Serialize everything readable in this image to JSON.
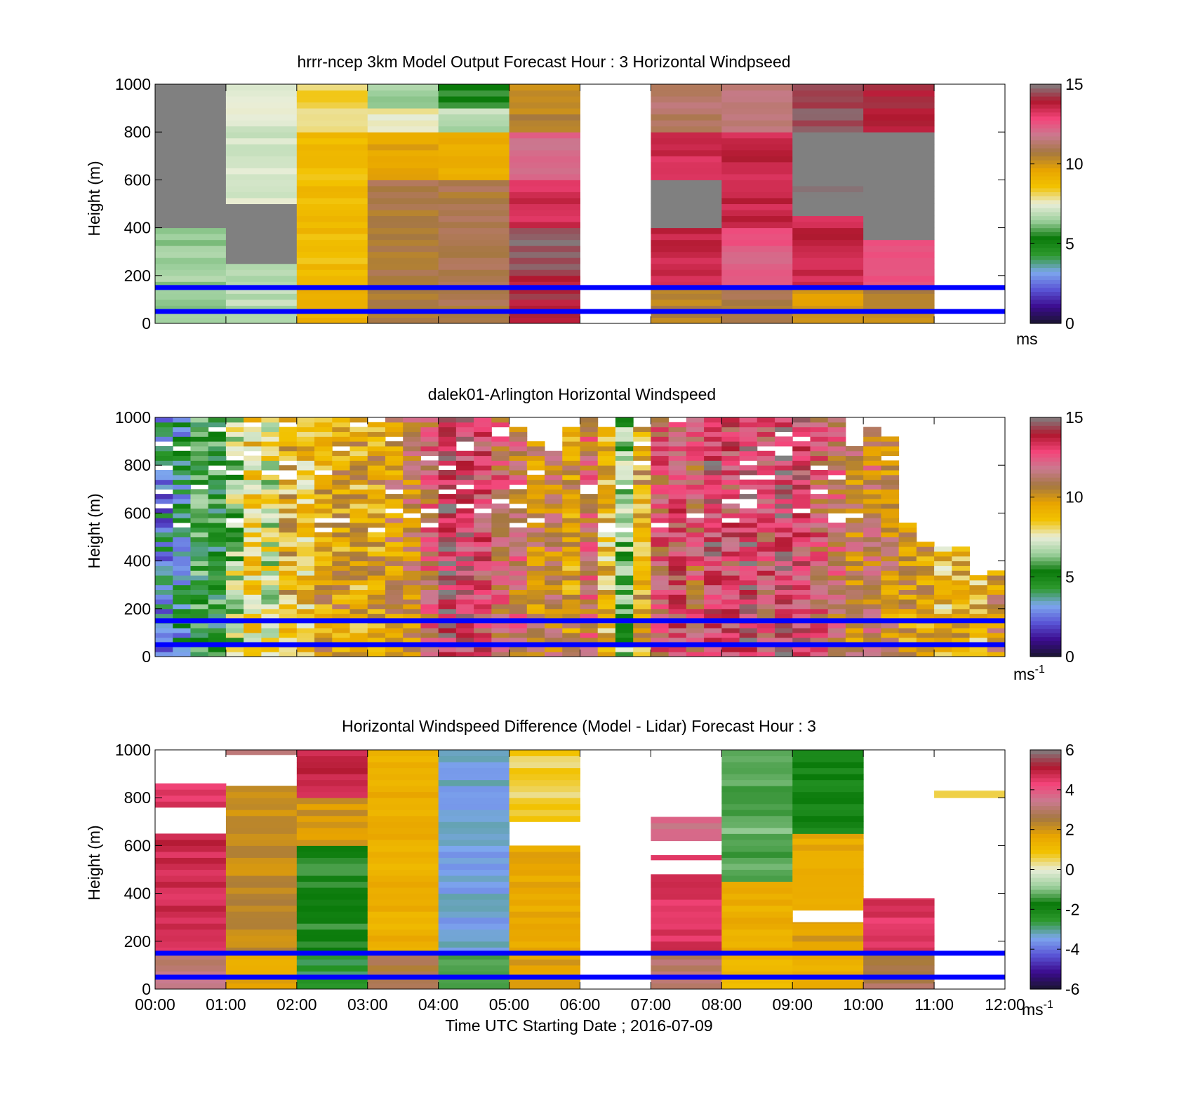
{
  "colors": {
    "speed_scale": [
      "#1a1530",
      "#3b0b8e",
      "#5a55d6",
      "#7da7ee",
      "#2e9a2e",
      "#0a7a0a",
      "#9ccf9c",
      "#e9eed9",
      "#f2c200",
      "#e8a400",
      "#a57840",
      "#c97a90",
      "#f4457a",
      "#b0182f",
      "#808080"
    ],
    "overlay_line": "#0000ff"
  },
  "chart_data": [
    {
      "type": "heatmap",
      "title": "hrrr-ncep 3km Model Output   Forecast Hour : 3 Horizontal Windpseed",
      "xlabel": "",
      "ylabel": "Height (m)",
      "ylim": [
        0,
        1000
      ],
      "xlim": [
        0,
        12
      ],
      "y_ticks": [
        "0",
        "200",
        "400",
        "600",
        "800",
        "1000"
      ],
      "colorbar": {
        "ticks": [
          "0",
          "5",
          "10",
          "15"
        ],
        "range": [
          0,
          15
        ],
        "label": "ms"
      },
      "overlay_lines": [
        150,
        50
      ],
      "columns": [
        {
          "t": 0,
          "cells": [
            [
              0,
              400,
              6.5
            ],
            [
              400,
              1000,
              16
            ]
          ]
        },
        {
          "t": 1,
          "cells": [
            [
              0,
              250,
              6.8
            ],
            [
              250,
              500,
              16
            ],
            [
              500,
              1000,
              7.2
            ]
          ]
        },
        {
          "t": 2,
          "cells": [
            [
              0,
              150,
              9.4
            ],
            [
              150,
              800,
              8.8
            ],
            [
              800,
              1000,
              8.2
            ]
          ]
        },
        {
          "t": 3,
          "cells": [
            [
              0,
              600,
              10.8
            ],
            [
              600,
              800,
              9.6
            ],
            [
              800,
              900,
              7.8
            ],
            [
              900,
              1000,
              6.4
            ]
          ]
        },
        {
          "t": 4,
          "cells": [
            [
              0,
              600,
              10.8
            ],
            [
              600,
              800,
              9.2
            ],
            [
              800,
              900,
              6.8
            ],
            [
              900,
              1000,
              5.6
            ]
          ]
        },
        {
          "t": 5,
          "cells": [
            [
              0,
              200,
              14.0
            ],
            [
              200,
              400,
              14.6
            ],
            [
              400,
              600,
              13.4
            ],
            [
              600,
              800,
              12.2
            ],
            [
              800,
              1000,
              10.4
            ]
          ]
        },
        {
          "t": 7,
          "cells": [
            [
              0,
              150,
              10.5
            ],
            [
              150,
              400,
              13.5
            ],
            [
              400,
              600,
              16
            ],
            [
              600,
              800,
              13.4
            ],
            [
              800,
              1000,
              11.2
            ]
          ]
        },
        {
          "t": 8,
          "cells": [
            [
              0,
              150,
              10.8
            ],
            [
              150,
              400,
              12.4
            ],
            [
              400,
              800,
              13.6
            ],
            [
              800,
              1000,
              11.6
            ]
          ]
        },
        {
          "t": 9,
          "cells": [
            [
              0,
              150,
              10.0
            ],
            [
              150,
              450,
              13.6
            ],
            [
              450,
              600,
              14.8
            ],
            [
              600,
              800,
              16
            ],
            [
              800,
              1000,
              14.6
            ]
          ]
        },
        {
          "t": 10,
          "cells": [
            [
              0,
              150,
              10.4
            ],
            [
              150,
              350,
              12.8
            ],
            [
              350,
              800,
              16
            ],
            [
              800,
              1000,
              14.0
            ]
          ]
        }
      ]
    },
    {
      "type": "heatmap",
      "title": "dalek01-Arlington  Horizontal Windspeed",
      "xlabel": "",
      "ylabel": "Height (m)",
      "ylim": [
        0,
        1000
      ],
      "xlim": [
        0,
        12
      ],
      "y_ticks": [
        "0",
        "200",
        "400",
        "600",
        "800",
        "1000"
      ],
      "colorbar": {
        "ticks": [
          "0",
          "5",
          "10",
          "15"
        ],
        "range": [
          0,
          15
        ],
        "label": "ms",
        "label_sup": "-1"
      },
      "overlay_lines": [
        150,
        50
      ],
      "profiles": [
        {
          "t": 0.0,
          "top": 1000,
          "v": 3.2
        },
        {
          "t": 0.25,
          "top": 1000,
          "v": 3.8
        },
        {
          "t": 0.5,
          "top": 1000,
          "v": 5.2
        },
        {
          "t": 0.75,
          "top": 1000,
          "v": 5.0
        },
        {
          "t": 1.0,
          "top": 1000,
          "v": 6.8
        },
        {
          "t": 1.25,
          "top": 1000,
          "v": 8.4
        },
        {
          "t": 1.5,
          "top": 1000,
          "v": 7.4
        },
        {
          "t": 1.75,
          "top": 1000,
          "v": 9.2
        },
        {
          "t": 2.0,
          "top": 1000,
          "v": 8.6
        },
        {
          "t": 2.25,
          "top": 1000,
          "v": 9.6
        },
        {
          "t": 2.5,
          "top": 1000,
          "v": 9.8
        },
        {
          "t": 2.75,
          "top": 1000,
          "v": 9.4
        },
        {
          "t": 3.0,
          "top": 1000,
          "v": 9.6
        },
        {
          "t": 3.25,
          "top": 1000,
          "v": 10.2
        },
        {
          "t": 3.5,
          "top": 1000,
          "v": 10.6
        },
        {
          "t": 3.75,
          "top": 1000,
          "v": 11.8
        },
        {
          "t": 4.0,
          "top": 1000,
          "v": 13.8
        },
        {
          "t": 4.25,
          "top": 1000,
          "v": 13.2
        },
        {
          "t": 4.5,
          "top": 1000,
          "v": 12.6
        },
        {
          "t": 4.75,
          "top": 1000,
          "v": 11.8
        },
        {
          "t": 5.0,
          "top": 950,
          "v": 11.4
        },
        {
          "t": 5.25,
          "top": 900,
          "v": 10.4
        },
        {
          "t": 5.5,
          "top": 850,
          "v": 10.8
        },
        {
          "t": 5.75,
          "top": 950,
          "v": 9.8
        },
        {
          "t": 6.0,
          "top": 1000,
          "v": 11.6
        },
        {
          "t": 6.25,
          "top": 950,
          "v": 8.8
        },
        {
          "t": 6.5,
          "top": 1000,
          "v": 6.2
        },
        {
          "t": 6.75,
          "top": 950,
          "v": 9.4
        },
        {
          "t": 7.0,
          "top": 1000,
          "v": 12.0
        },
        {
          "t": 7.25,
          "top": 1000,
          "v": 12.6
        },
        {
          "t": 7.5,
          "top": 1000,
          "v": 11.8
        },
        {
          "t": 7.75,
          "top": 1000,
          "v": 13.4
        },
        {
          "t": 8.0,
          "top": 1000,
          "v": 12.6
        },
        {
          "t": 8.25,
          "top": 1000,
          "v": 13.8
        },
        {
          "t": 8.5,
          "top": 1000,
          "v": 12.4
        },
        {
          "t": 8.75,
          "top": 1000,
          "v": 13.6
        },
        {
          "t": 9.0,
          "top": 1000,
          "v": 13.0
        },
        {
          "t": 9.25,
          "top": 1000,
          "v": 12.0
        },
        {
          "t": 9.5,
          "top": 1000,
          "v": 11.6
        },
        {
          "t": 9.75,
          "top": 880,
          "v": 10.6
        },
        {
          "t": 10.0,
          "top": 950,
          "v": 10.8
        },
        {
          "t": 10.25,
          "top": 920,
          "v": 10.4
        },
        {
          "t": 10.5,
          "top": 550,
          "v": 9.8
        },
        {
          "t": 10.75,
          "top": 480,
          "v": 9.6
        },
        {
          "t": 11.0,
          "top": 450,
          "v": 8.8
        },
        {
          "t": 11.25,
          "top": 460,
          "v": 9.4
        },
        {
          "t": 11.5,
          "top": 330,
          "v": 9.0
        },
        {
          "t": 11.75,
          "top": 350,
          "v": 10.0
        }
      ]
    },
    {
      "type": "heatmap",
      "title": "Horizontal Windspeed Difference (Model - Lidar) Forecast Hour : 3",
      "xlabel": "Time UTC  Starting Date ; 2016-07-09",
      "ylabel": "Height (m)",
      "ylim": [
        0,
        1000
      ],
      "xlim": [
        0,
        12
      ],
      "y_ticks": [
        "0",
        "200",
        "400",
        "600",
        "800",
        "1000"
      ],
      "x_ticks": [
        "00:00",
        "01:00",
        "02:00",
        "03:00",
        "04:00",
        "05:00",
        "06:00",
        "07:00",
        "08:00",
        "09:00",
        "10:00",
        "11:00",
        "12:00"
      ],
      "colorbar": {
        "ticks": [
          "-6",
          "-4",
          "-2",
          "0",
          "2",
          "4",
          "6"
        ],
        "range": [
          -6,
          6
        ],
        "label": "ms",
        "label_sup": "-1"
      },
      "overlay_lines": [
        150,
        50
      ],
      "columns": [
        {
          "t": 0,
          "cells": [
            [
              0,
              150,
              3.2
            ],
            [
              150,
              650,
              4.8
            ],
            [
              650,
              760,
              null
            ],
            [
              760,
              860,
              4.6
            ]
          ]
        },
        {
          "t": 1,
          "cells": [
            [
              0,
              150,
              1.6
            ],
            [
              150,
              850,
              2.2
            ],
            [
              850,
              980,
              null
            ],
            [
              980,
              1000,
              3.4
            ]
          ]
        },
        {
          "t": 2,
          "cells": [
            [
              0,
              150,
              -2.6
            ],
            [
              150,
              600,
              -1.6
            ],
            [
              600,
              800,
              2.0
            ],
            [
              800,
              1000,
              4.8
            ]
          ]
        },
        {
          "t": 3,
          "cells": [
            [
              0,
              150,
              2.6
            ],
            [
              150,
              1000,
              1.4
            ]
          ]
        },
        {
          "t": 4,
          "cells": [
            [
              0,
              150,
              -1.2
            ],
            [
              150,
              1000,
              -3.4
            ]
          ]
        },
        {
          "t": 5,
          "cells": [
            [
              0,
              150,
              1.8
            ],
            [
              150,
              600,
              1.6
            ],
            [
              600,
              700,
              null
            ],
            [
              700,
              1000,
              0.6
            ]
          ]
        },
        {
          "t": 7,
          "cells": [
            [
              0,
              150,
              3.0
            ],
            [
              150,
              480,
              4.6
            ],
            [
              480,
              540,
              null
            ],
            [
              540,
              560,
              4.8
            ],
            [
              560,
              620,
              null
            ],
            [
              620,
              720,
              3.6
            ]
          ]
        },
        {
          "t": 8,
          "cells": [
            [
              0,
              150,
              1.2
            ],
            [
              150,
              450,
              1.4
            ],
            [
              450,
              1000,
              -1.2
            ]
          ]
        },
        {
          "t": 9,
          "cells": [
            [
              0,
              150,
              1.4
            ],
            [
              150,
              280,
              1.8
            ],
            [
              280,
              330,
              null
            ],
            [
              330,
              650,
              1.6
            ],
            [
              650,
              1000,
              -2.0
            ]
          ]
        },
        {
          "t": 10,
          "cells": [
            [
              0,
              150,
              2.8
            ],
            [
              150,
              380,
              4.6
            ]
          ]
        },
        {
          "t": 11,
          "cells": [
            [
              800,
              830,
              0.6
            ]
          ]
        }
      ]
    }
  ]
}
